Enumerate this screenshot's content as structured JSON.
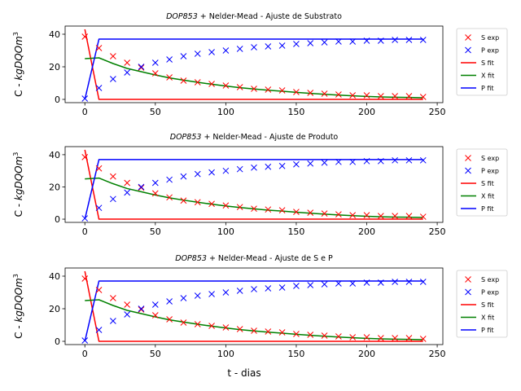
{
  "figure": {
    "xlabel": "t - dias"
  },
  "chart_data": [
    {
      "type": "line",
      "title": "DOP853 + Nelder-Mead - Ajuste de Substrato",
      "title_italic_part": "DOP853",
      "title_rest": " + Nelder-Mead - Ajuste de Substrato",
      "ylabel": "C - kgDQOm",
      "ylabel_sup": "3",
      "xlabel": "",
      "xlim": [
        -14,
        254
      ],
      "ylim": [
        -2,
        45
      ],
      "xticks": [
        0,
        50,
        100,
        150,
        200,
        250
      ],
      "yticks": [
        0,
        20,
        40
      ],
      "legend_position": "outside-right",
      "legend": [
        "S exp",
        "P exp",
        "S fit",
        "X fit",
        "P fit"
      ],
      "colors": {
        "S": "#ff0000",
        "P": "#0000ff",
        "X": "#008000"
      },
      "x": [
        0,
        10,
        20,
        30,
        40,
        50,
        60,
        70,
        80,
        90,
        100,
        110,
        120,
        130,
        140,
        150,
        160,
        170,
        180,
        190,
        200,
        210,
        220,
        230,
        240
      ],
      "series": [
        {
          "name": "S exp",
          "kind": "scatter",
          "color": "#ff0000",
          "values": [
            38.5,
            31.5,
            26.5,
            22.5,
            19.5,
            16,
            13.5,
            11.5,
            10.5,
            9.5,
            8.5,
            7.5,
            6.5,
            6,
            5.5,
            4.5,
            4,
            3.5,
            3,
            2.5,
            2.5,
            2,
            2,
            2,
            1.5
          ]
        },
        {
          "name": "P exp",
          "kind": "scatter",
          "color": "#0000ff",
          "values": [
            0.5,
            7,
            12.5,
            16.5,
            20,
            22.5,
            24.5,
            26.5,
            28,
            29,
            30,
            31,
            32,
            32.5,
            33,
            34,
            34.5,
            35,
            35.5,
            35.5,
            36,
            36,
            36.5,
            36.5,
            36.5
          ]
        },
        {
          "name": "S fit",
          "kind": "line",
          "color": "#ff0000",
          "x": [
            0,
            10,
            240
          ],
          "values": [
            43,
            0,
            0
          ]
        },
        {
          "name": "X fit",
          "kind": "line",
          "color": "#008000",
          "x": [
            0,
            10,
            20,
            30,
            40,
            50,
            60,
            70,
            80,
            90,
            100,
            110,
            120,
            130,
            140,
            150,
            160,
            170,
            180,
            190,
            200,
            210,
            220,
            230,
            240
          ],
          "values": [
            25,
            25.5,
            22,
            19,
            17,
            15,
            13.2,
            11.8,
            10.5,
            9.3,
            8.2,
            7.2,
            6.4,
            5.6,
            5,
            4.3,
            3.7,
            3.1,
            2.6,
            2.2,
            1.8,
            1.5,
            1.3,
            1.2,
            1
          ]
        },
        {
          "name": "P fit",
          "kind": "line",
          "color": "#0000ff",
          "x": [
            0,
            10,
            240
          ],
          "values": [
            0,
            37,
            37
          ]
        }
      ]
    },
    {
      "type": "line",
      "title": "DOP853 + Nelder-Mead - Ajuste de Produto",
      "title_italic_part": "DOP853",
      "title_rest": " + Nelder-Mead - Ajuste de Produto",
      "ylabel": "C - kgDQOm",
      "ylabel_sup": "3",
      "xlabel": "",
      "xlim": [
        -14,
        254
      ],
      "ylim": [
        -2,
        45
      ],
      "xticks": [
        0,
        50,
        100,
        150,
        200,
        250
      ],
      "yticks": [
        0,
        20,
        40
      ],
      "legend_position": "outside-right",
      "legend": [
        "S exp",
        "P exp",
        "S fit",
        "X fit",
        "P fit"
      ],
      "colors": {
        "S": "#ff0000",
        "P": "#0000ff",
        "X": "#008000"
      },
      "x": [
        0,
        10,
        20,
        30,
        40,
        50,
        60,
        70,
        80,
        90,
        100,
        110,
        120,
        130,
        140,
        150,
        160,
        170,
        180,
        190,
        200,
        210,
        220,
        230,
        240
      ],
      "series": [
        {
          "name": "S exp",
          "kind": "scatter",
          "color": "#ff0000",
          "values": [
            38.5,
            31.5,
            26.5,
            22.5,
            19.5,
            16,
            13.5,
            11.5,
            10.5,
            9.5,
            8.5,
            7.5,
            6.5,
            6,
            5.5,
            4.5,
            4,
            3.5,
            3,
            2.5,
            2.5,
            2,
            2,
            2,
            1.5
          ]
        },
        {
          "name": "P exp",
          "kind": "scatter",
          "color": "#0000ff",
          "values": [
            0.5,
            7,
            12.5,
            16.5,
            20,
            22.5,
            24.5,
            26.5,
            28,
            29,
            30,
            31,
            32,
            32.5,
            33,
            34,
            34.5,
            35,
            35.5,
            35.5,
            36,
            36,
            36.5,
            36.5,
            36.5
          ]
        },
        {
          "name": "S fit",
          "kind": "line",
          "color": "#ff0000",
          "x": [
            0,
            10,
            240
          ],
          "values": [
            43,
            0,
            0
          ]
        },
        {
          "name": "X fit",
          "kind": "line",
          "color": "#008000",
          "x": [
            0,
            10,
            20,
            30,
            40,
            50,
            60,
            70,
            80,
            90,
            100,
            110,
            120,
            130,
            140,
            150,
            160,
            170,
            180,
            190,
            200,
            210,
            220,
            230,
            240
          ],
          "values": [
            25,
            25.5,
            22,
            19,
            17,
            15,
            13.2,
            11.8,
            10.5,
            9.3,
            8.2,
            7.2,
            6.4,
            5.6,
            5,
            4.3,
            3.7,
            3.1,
            2.6,
            2.2,
            1.8,
            1.5,
            1.3,
            1.2,
            1
          ]
        },
        {
          "name": "P fit",
          "kind": "line",
          "color": "#0000ff",
          "x": [
            0,
            10,
            240
          ],
          "values": [
            0,
            37,
            37
          ]
        }
      ]
    },
    {
      "type": "line",
      "title": "DOP853 + Nelder-Mead - Ajuste de S e P",
      "title_italic_part": "DOP853",
      "title_rest": " + Nelder-Mead - Ajuste de S e P",
      "ylabel": "C - kgDQOm",
      "ylabel_sup": "3",
      "xlabel": "t - dias",
      "xlim": [
        -14,
        254
      ],
      "ylim": [
        -2,
        45
      ],
      "xticks": [
        0,
        50,
        100,
        150,
        200,
        250
      ],
      "yticks": [
        0,
        20,
        40
      ],
      "legend_position": "outside-right",
      "legend": [
        "S exp",
        "P exp",
        "S fit",
        "X fit",
        "P fit"
      ],
      "colors": {
        "S": "#ff0000",
        "P": "#0000ff",
        "X": "#008000"
      },
      "x": [
        0,
        10,
        20,
        30,
        40,
        50,
        60,
        70,
        80,
        90,
        100,
        110,
        120,
        130,
        140,
        150,
        160,
        170,
        180,
        190,
        200,
        210,
        220,
        230,
        240
      ],
      "series": [
        {
          "name": "S exp",
          "kind": "scatter",
          "color": "#ff0000",
          "values": [
            38.5,
            31.5,
            26.5,
            22.5,
            19.5,
            16,
            13.5,
            11.5,
            10.5,
            9.5,
            8.5,
            7.5,
            6.5,
            6,
            5.5,
            4.5,
            4,
            3.5,
            3,
            2.5,
            2.5,
            2,
            2,
            2,
            1.5
          ]
        },
        {
          "name": "P exp",
          "kind": "scatter",
          "color": "#0000ff",
          "values": [
            0.5,
            7,
            12.5,
            16.5,
            20,
            22.5,
            24.5,
            26.5,
            28,
            29,
            30,
            31,
            32,
            32.5,
            33,
            34,
            34.5,
            35,
            35.5,
            35.5,
            36,
            36,
            36.5,
            36.5,
            36.5
          ]
        },
        {
          "name": "S fit",
          "kind": "line",
          "color": "#ff0000",
          "x": [
            0,
            10,
            240
          ],
          "values": [
            43,
            0,
            0
          ]
        },
        {
          "name": "X fit",
          "kind": "line",
          "color": "#008000",
          "x": [
            0,
            10,
            20,
            30,
            40,
            50,
            60,
            70,
            80,
            90,
            100,
            110,
            120,
            130,
            140,
            150,
            160,
            170,
            180,
            190,
            200,
            210,
            220,
            230,
            240
          ],
          "values": [
            25,
            25.5,
            22,
            19,
            17,
            15,
            13.2,
            11.8,
            10.5,
            9.3,
            8.2,
            7.2,
            6.4,
            5.6,
            5,
            4.3,
            3.7,
            3.1,
            2.6,
            2.2,
            1.8,
            1.5,
            1.3,
            1.2,
            1
          ]
        },
        {
          "name": "P fit",
          "kind": "line",
          "color": "#0000ff",
          "x": [
            0,
            10,
            240
          ],
          "values": [
            0,
            37,
            37
          ]
        }
      ]
    }
  ]
}
